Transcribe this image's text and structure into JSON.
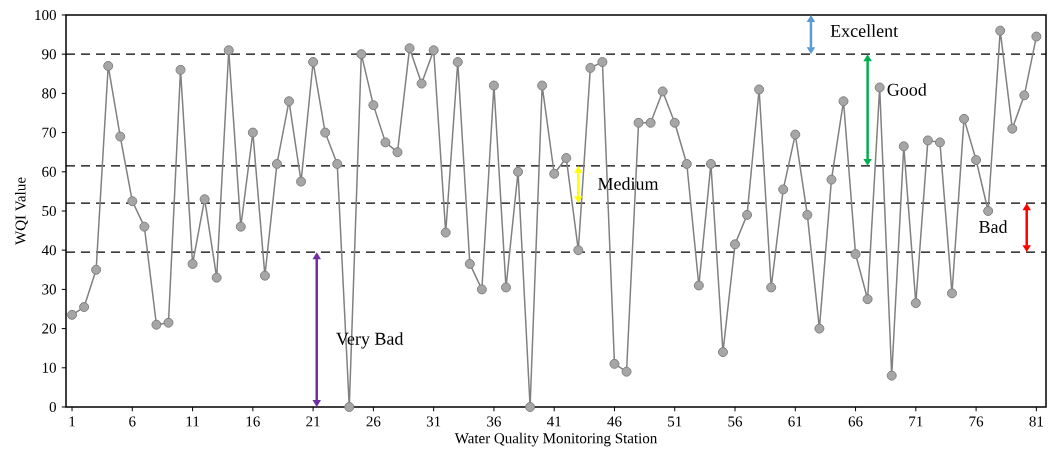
{
  "chart_data": {
    "type": "line",
    "xlabel": "Water Quality Monitoring Station",
    "ylabel": "WQI Value",
    "x": [
      1,
      2,
      3,
      4,
      5,
      6,
      7,
      8,
      9,
      10,
      11,
      12,
      13,
      14,
      15,
      16,
      17,
      18,
      19,
      20,
      21,
      22,
      23,
      24,
      25,
      26,
      27,
      28,
      29,
      30,
      31,
      32,
      33,
      34,
      35,
      36,
      37,
      38,
      39,
      40,
      41,
      42,
      43,
      44,
      45,
      46,
      47,
      48,
      49,
      50,
      51,
      52,
      53,
      54,
      55,
      56,
      57,
      58,
      59,
      60,
      61,
      62,
      63,
      64,
      65,
      66,
      67,
      68,
      69,
      70,
      71,
      72,
      73,
      74,
      75,
      76,
      77,
      78,
      79,
      80,
      81
    ],
    "series": [
      {
        "color": "#808080",
        "values": [
          23.5,
          25.5,
          35,
          87,
          69,
          52.5,
          46,
          21,
          21.5,
          86,
          36.5,
          53,
          33,
          91,
          46,
          70,
          33.5,
          62,
          78,
          57.5,
          88,
          70,
          62,
          0,
          90,
          77,
          67.5,
          65,
          91.5,
          82.5,
          91,
          44.5,
          88,
          36.5,
          30,
          82,
          30.5,
          60,
          0,
          82,
          59.5,
          63.5,
          40,
          86.5,
          88,
          11,
          9,
          72.5,
          72.5,
          80.5,
          72.5,
          62,
          31,
          62,
          14,
          41.5,
          49,
          81,
          30.5,
          55.5,
          69.5,
          49,
          20,
          58,
          78,
          39,
          27.5,
          81.5,
          8,
          66.5,
          26.5,
          68,
          67.5,
          29,
          73.5,
          63,
          50,
          96,
          71,
          79.5,
          94.5
        ]
      }
    ],
    "marker": "circle",
    "line_style": "solid",
    "xlim": [
      0.5,
      81.8
    ],
    "xticks": [
      1,
      6,
      11,
      16,
      21,
      26,
      31,
      36,
      41,
      46,
      51,
      56,
      61,
      66,
      71,
      76,
      81
    ],
    "ylim": [
      0,
      100
    ],
    "yticks": [
      0,
      10,
      20,
      30,
      40,
      50,
      60,
      70,
      80,
      90,
      100
    ],
    "ref_lines": [
      {
        "axis": "y",
        "value": 90,
        "color": "#000000",
        "line_style": "dashed"
      },
      {
        "axis": "y",
        "value": 61.5,
        "color": "#000000",
        "line_style": "dashed"
      },
      {
        "axis": "y",
        "value": 52,
        "color": "#000000",
        "line_style": "dashed"
      },
      {
        "axis": "y",
        "value": 39.5,
        "color": "#000000",
        "line_style": "dashed"
      }
    ],
    "annotations": [
      "Excellent",
      "Good",
      "Medium",
      "Bad",
      "Very Bad"
    ]
  }
}
